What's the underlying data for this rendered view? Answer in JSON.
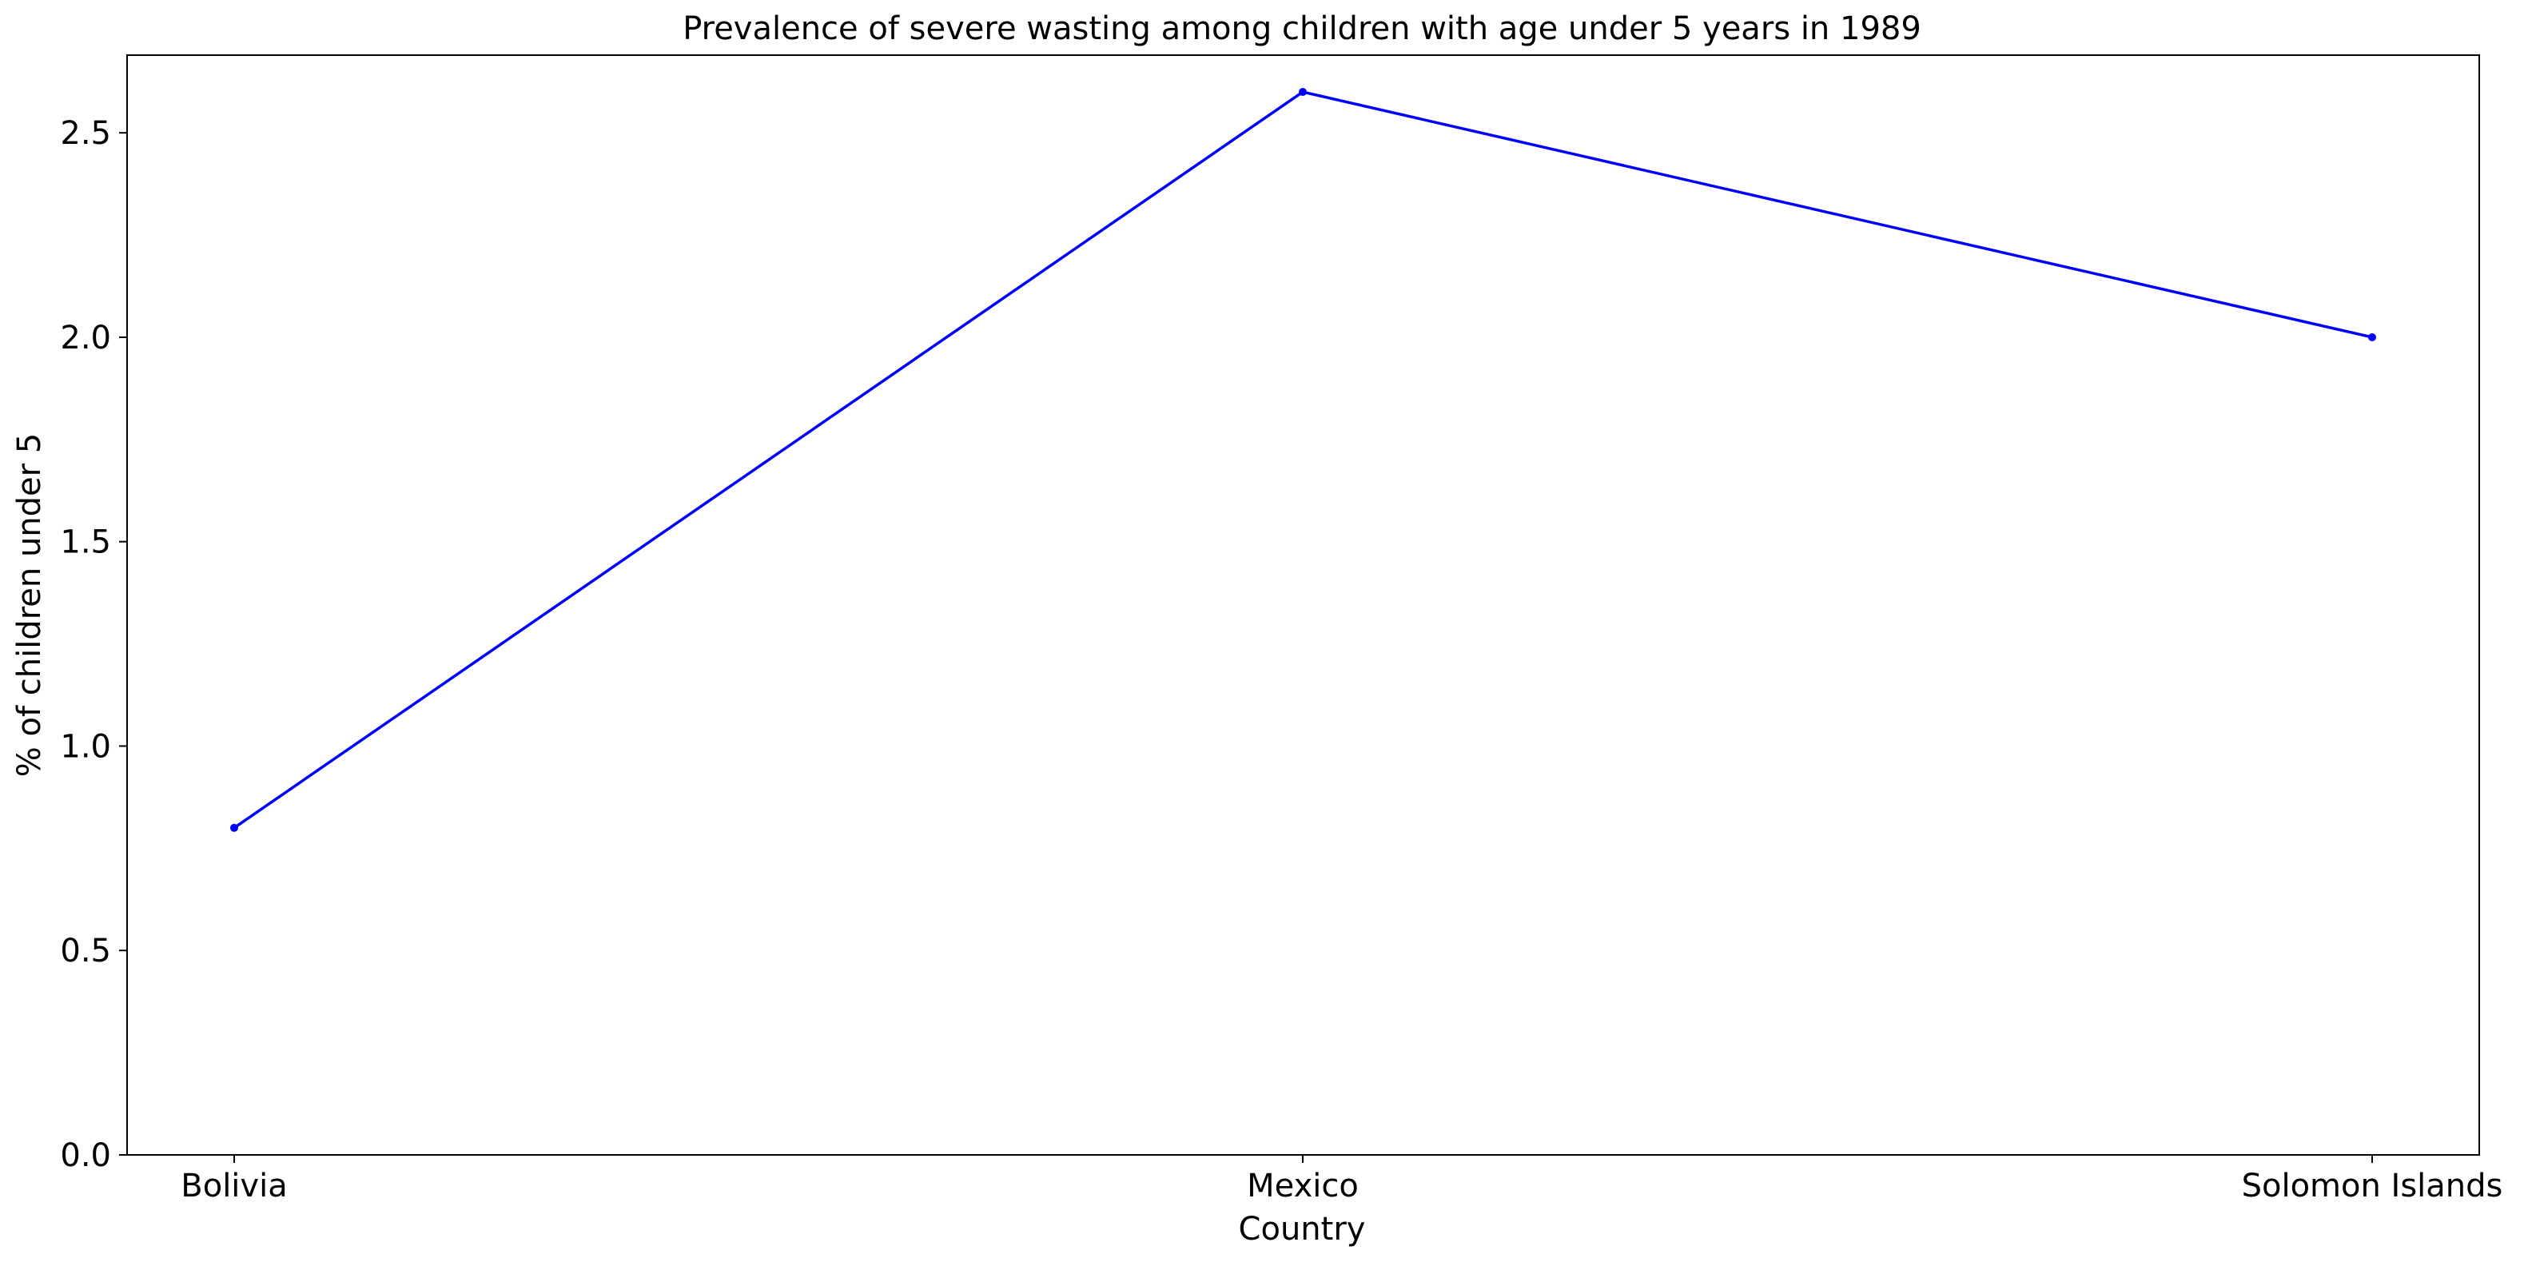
{
  "chart_data": {
    "type": "line",
    "title": "Prevalence of severe wasting among children with age under 5 years in 1989",
    "xlabel": "Country",
    "ylabel": "% of children under 5",
    "categories": [
      "Bolivia",
      "Mexico",
      "Solomon Islands"
    ],
    "series": [
      {
        "values": [
          0.8,
          2.6,
          2.0
        ],
        "color": "#0000ff",
        "marker": "dot"
      }
    ],
    "ylim": [
      0,
      2.69
    ],
    "yticks": [
      0.0,
      0.5,
      1.0,
      1.5,
      2.0,
      2.5
    ],
    "ytick_labels": [
      "0.0",
      "0.5",
      "1.0",
      "1.5",
      "2.0",
      "2.5"
    ],
    "grid": false,
    "legend": "none"
  }
}
